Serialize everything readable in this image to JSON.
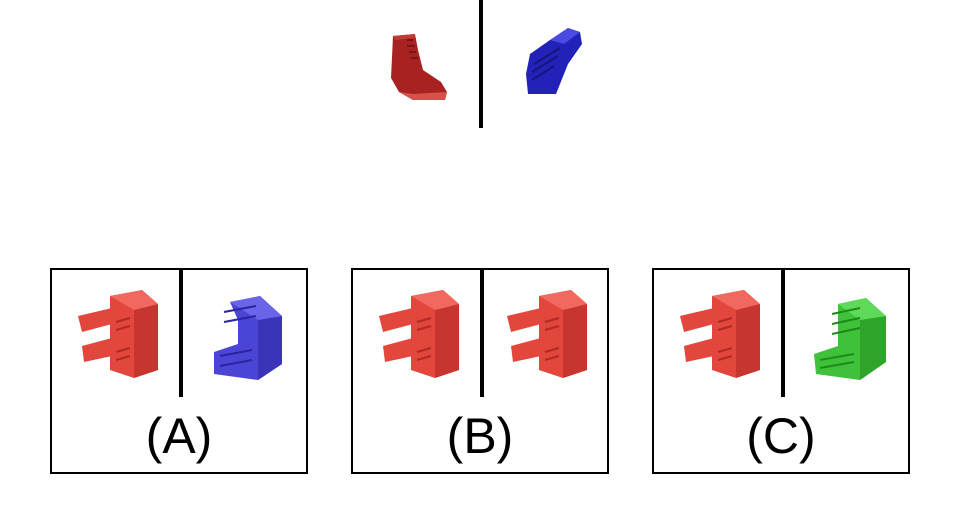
{
  "example": {
    "left_object": {
      "name": "boot",
      "color": "#b52a2a"
    },
    "right_object": {
      "name": "boot",
      "color": "#2f2fc9"
    }
  },
  "options": [
    {
      "label": "(A)",
      "left": {
        "name": "shelf",
        "color": "#e2463c"
      },
      "right": {
        "name": "shelf",
        "color": "#4b45d6"
      }
    },
    {
      "label": "(B)",
      "left": {
        "name": "shelf",
        "color": "#e2463c"
      },
      "right": {
        "name": "shelf",
        "color": "#e2463c"
      }
    },
    {
      "label": "(C)",
      "left": {
        "name": "shelf",
        "color": "#e2463c"
      },
      "right": {
        "name": "shelf",
        "color": "#3fc13a"
      }
    }
  ]
}
